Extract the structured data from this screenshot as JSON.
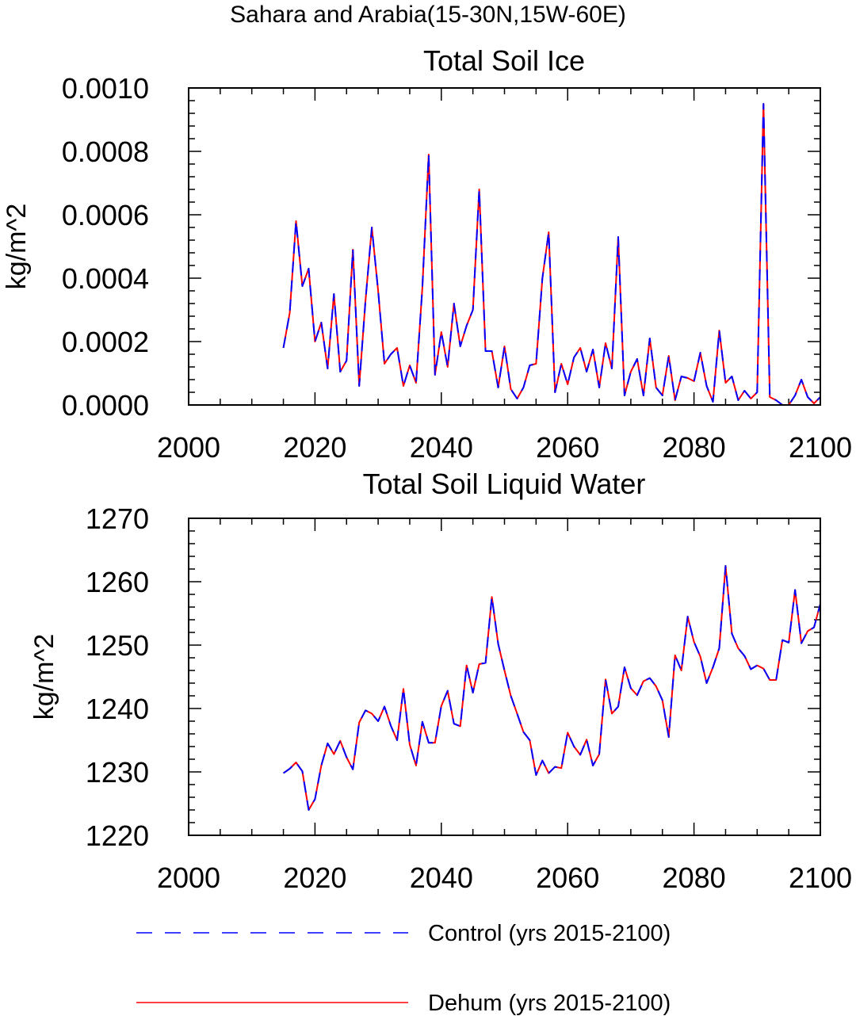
{
  "figure": {
    "supertitle": "Sahara and Arabia(15-30N,15W-60E)"
  },
  "legend": {
    "control_label": "Control (yrs 2015-2100)",
    "dehum_label": "Dehum (yrs 2015-2100)",
    "control_color": "#0000ff",
    "dehum_color": "#ff0000"
  },
  "chart_data": [
    {
      "type": "line",
      "title": "Total Soil Ice",
      "xlabel": "",
      "ylabel": "kg/m^2",
      "xlim": [
        2000,
        2100
      ],
      "ylim": [
        0,
        0.001
      ],
      "xticks": [
        2000,
        2020,
        2040,
        2060,
        2080,
        2100
      ],
      "xtick_labels": [
        "2000",
        "2020",
        "2040",
        "2060",
        "2080",
        "2100"
      ],
      "yticks": [
        0,
        0.0002,
        0.0004,
        0.0006,
        0.0008,
        0.001
      ],
      "ytick_labels": [
        "0.0000",
        "0.0002",
        "0.0004",
        "0.0006",
        "0.0008",
        "0.0010"
      ],
      "grid": false,
      "x": [
        2015,
        2016,
        2017,
        2018,
        2019,
        2020,
        2021,
        2022,
        2023,
        2024,
        2025,
        2026,
        2027,
        2028,
        2029,
        2030,
        2031,
        2032,
        2033,
        2034,
        2035,
        2036,
        2037,
        2038,
        2039,
        2040,
        2041,
        2042,
        2043,
        2044,
        2045,
        2046,
        2047,
        2048,
        2049,
        2050,
        2051,
        2052,
        2053,
        2054,
        2055,
        2056,
        2057,
        2058,
        2059,
        2060,
        2061,
        2062,
        2063,
        2064,
        2065,
        2066,
        2067,
        2068,
        2069,
        2070,
        2071,
        2072,
        2073,
        2074,
        2075,
        2076,
        2077,
        2078,
        2079,
        2080,
        2081,
        2082,
        2083,
        2084,
        2085,
        2086,
        2087,
        2088,
        2089,
        2090,
        2091,
        2092,
        2093,
        2094,
        2095,
        2096,
        2097,
        2098,
        2099,
        2100
      ],
      "series": [
        {
          "name": "Control (yrs 2015-2100)",
          "values": [
            0.00018,
            0.00029,
            0.00058,
            0.000375,
            0.00043,
            0.0002,
            0.00026,
            0.000115,
            0.00035,
            0.000105,
            0.00014,
            0.00049,
            6e-05,
            0.00033,
            0.00056,
            0.00036,
            0.00013,
            0.00016,
            0.00018,
            6e-05,
            0.000125,
            7e-05,
            0.00037,
            0.00079,
            9.5e-05,
            0.00023,
            0.00012,
            0.00032,
            0.000185,
            0.00025,
            0.0003,
            0.00068,
            0.00017,
            0.00017,
            5.5e-05,
            0.000185,
            5e-05,
            2e-05,
            5.5e-05,
            0.000125,
            0.00013,
            0.0004,
            0.000545,
            4e-05,
            0.00013,
            6.5e-05,
            0.00015,
            0.00018,
            0.000105,
            0.000175,
            5.5e-05,
            0.000195,
            0.000115,
            0.00053,
            3e-05,
            0.000105,
            0.000145,
            3e-05,
            0.00021,
            5.5e-05,
            3e-05,
            0.000155,
            1.5e-05,
            9e-05,
            8.5e-05,
            7.5e-05,
            0.000165,
            6e-05,
            1e-05,
            0.000235,
            7e-05,
            9e-05,
            1.5e-05,
            4.5e-05,
            2e-05,
            4e-05,
            0.00095,
            2.5e-05,
            1.5e-05,
            0.0,
            0.0,
            3e-05,
            8e-05,
            2.5e-05,
            5e-06,
            2.5e-05
          ]
        },
        {
          "name": "Dehum (yrs 2015-2100)",
          "values": [
            0.00018,
            0.00029,
            0.00058,
            0.000375,
            0.00043,
            0.0002,
            0.00026,
            0.000115,
            0.00035,
            0.000105,
            0.00014,
            0.00049,
            6e-05,
            0.00033,
            0.00056,
            0.00036,
            0.00013,
            0.00016,
            0.00018,
            6e-05,
            0.000125,
            7e-05,
            0.00037,
            0.00079,
            9.5e-05,
            0.00023,
            0.00012,
            0.00032,
            0.000185,
            0.00025,
            0.0003,
            0.00068,
            0.00017,
            0.00017,
            5.5e-05,
            0.000185,
            5e-05,
            2e-05,
            5.5e-05,
            0.000125,
            0.00013,
            0.0004,
            0.000545,
            4e-05,
            0.00013,
            6.5e-05,
            0.00015,
            0.00018,
            0.000105,
            0.000175,
            5.5e-05,
            0.000195,
            0.000115,
            0.00053,
            3e-05,
            0.000105,
            0.000145,
            3e-05,
            0.00021,
            5.5e-05,
            3e-05,
            0.000155,
            1.5e-05,
            9e-05,
            8.5e-05,
            7.5e-05,
            0.000165,
            6e-05,
            1e-05,
            0.000235,
            7e-05,
            9e-05,
            1.5e-05,
            4.5e-05,
            2e-05,
            4e-05,
            0.00095,
            2.5e-05,
            1.5e-05,
            0.0,
            0.0,
            3e-05,
            8e-05,
            2.5e-05,
            5e-06,
            2.5e-05
          ]
        }
      ]
    },
    {
      "type": "line",
      "title": "Total Soil Liquid Water",
      "xlabel": "",
      "ylabel": "kg/m^2",
      "xlim": [
        2000,
        2100
      ],
      "ylim": [
        1220,
        1270
      ],
      "xticks": [
        2000,
        2020,
        2040,
        2060,
        2080,
        2100
      ],
      "xtick_labels": [
        "2000",
        "2020",
        "2040",
        "2060",
        "2080",
        "2100"
      ],
      "yticks": [
        1220,
        1230,
        1240,
        1250,
        1260,
        1270
      ],
      "ytick_labels": [
        "1220",
        "1230",
        "1240",
        "1250",
        "1260",
        "1270"
      ],
      "grid": false,
      "x": [
        2015,
        2016,
        2017,
        2018,
        2019,
        2020,
        2021,
        2022,
        2023,
        2024,
        2025,
        2026,
        2027,
        2028,
        2029,
        2030,
        2031,
        2032,
        2033,
        2034,
        2035,
        2036,
        2037,
        2038,
        2039,
        2040,
        2041,
        2042,
        2043,
        2044,
        2045,
        2046,
        2047,
        2048,
        2049,
        2050,
        2051,
        2052,
        2053,
        2054,
        2055,
        2056,
        2057,
        2058,
        2059,
        2060,
        2061,
        2062,
        2063,
        2064,
        2065,
        2066,
        2067,
        2068,
        2069,
        2070,
        2071,
        2072,
        2073,
        2074,
        2075,
        2076,
        2077,
        2078,
        2079,
        2080,
        2081,
        2082,
        2083,
        2084,
        2085,
        2086,
        2087,
        2088,
        2089,
        2090,
        2091,
        2092,
        2093,
        2094,
        2095,
        2096,
        2097,
        2098,
        2099,
        2100
      ],
      "series": [
        {
          "name": "Control (yrs 2015-2100)",
          "values": [
            1229.8,
            1230.5,
            1231.5,
            1230.1,
            1224.0,
            1225.7,
            1231.0,
            1234.5,
            1232.8,
            1234.9,
            1232.3,
            1230.4,
            1237.8,
            1239.7,
            1239.2,
            1238.0,
            1240.3,
            1237.3,
            1235.0,
            1243.1,
            1234.3,
            1231.0,
            1237.9,
            1234.6,
            1234.6,
            1240.4,
            1242.8,
            1237.6,
            1237.2,
            1246.8,
            1242.5,
            1247.0,
            1247.2,
            1257.6,
            1250.2,
            1246.0,
            1242.0,
            1239.2,
            1236.3,
            1235.0,
            1229.5,
            1231.8,
            1229.8,
            1230.8,
            1230.6,
            1236.2,
            1234.0,
            1232.7,
            1235.1,
            1231.0,
            1232.8,
            1244.6,
            1239.2,
            1240.3,
            1246.5,
            1243.2,
            1242.1,
            1244.3,
            1244.8,
            1243.5,
            1241.3,
            1235.5,
            1248.4,
            1246.0,
            1254.5,
            1250.5,
            1248.2,
            1244.0,
            1246.5,
            1249.5,
            1262.5,
            1251.8,
            1249.5,
            1248.3,
            1246.2,
            1246.8,
            1246.3,
            1244.5,
            1244.5,
            1250.8,
            1250.4,
            1258.7,
            1250.3,
            1252.2,
            1252.8,
            1256.5
          ]
        },
        {
          "name": "Dehum (yrs 2015-2100)",
          "values": [
            1229.8,
            1230.5,
            1231.5,
            1230.1,
            1224.0,
            1225.7,
            1231.0,
            1234.5,
            1232.8,
            1234.9,
            1232.3,
            1230.4,
            1237.8,
            1239.7,
            1239.2,
            1238.0,
            1240.3,
            1237.3,
            1235.0,
            1243.1,
            1234.3,
            1231.0,
            1237.9,
            1234.6,
            1234.6,
            1240.4,
            1242.8,
            1237.6,
            1237.2,
            1246.8,
            1242.5,
            1247.0,
            1247.2,
            1257.6,
            1250.2,
            1246.0,
            1242.0,
            1239.2,
            1236.3,
            1235.0,
            1229.5,
            1231.8,
            1229.8,
            1230.8,
            1230.6,
            1236.2,
            1234.0,
            1232.7,
            1235.1,
            1231.0,
            1232.8,
            1244.6,
            1239.2,
            1240.3,
            1246.5,
            1243.2,
            1242.1,
            1244.3,
            1244.8,
            1243.5,
            1241.3,
            1235.5,
            1248.4,
            1246.0,
            1254.5,
            1250.5,
            1248.2,
            1244.0,
            1246.5,
            1249.5,
            1262.5,
            1251.8,
            1249.5,
            1248.3,
            1246.2,
            1246.8,
            1246.3,
            1244.5,
            1244.5,
            1250.8,
            1250.4,
            1258.7,
            1250.3,
            1252.2,
            1252.8,
            1256.5
          ]
        }
      ]
    }
  ]
}
